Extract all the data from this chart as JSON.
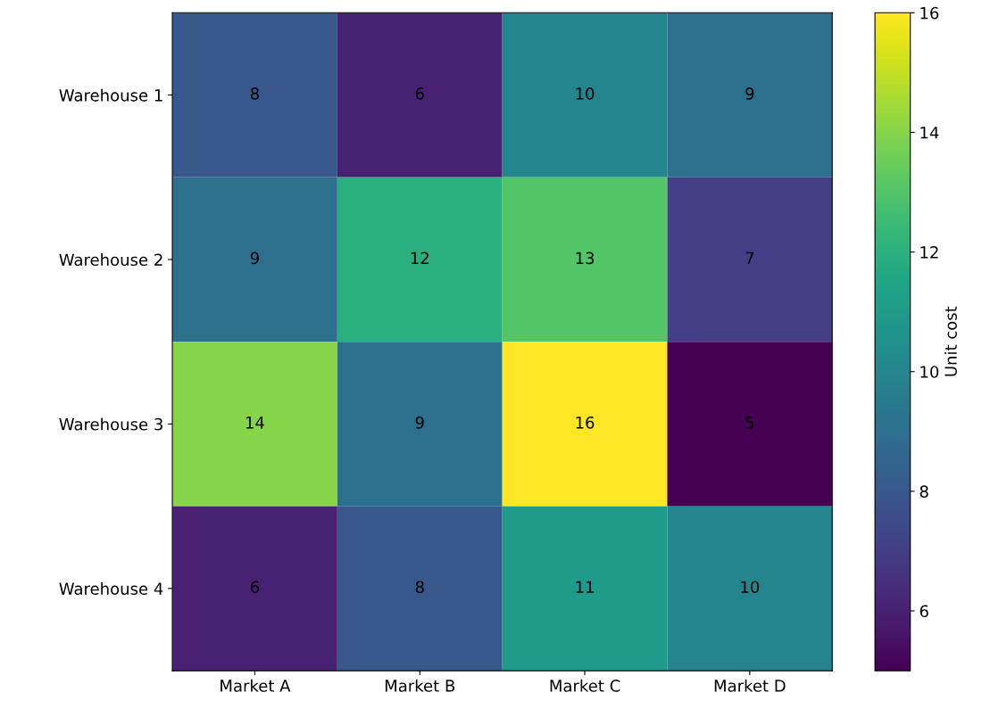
{
  "chart_data": {
    "type": "heatmap",
    "categories": [
      "Market A",
      "Market B",
      "Market C",
      "Market D"
    ],
    "y_categories": [
      "Warehouse 1",
      "Warehouse 2",
      "Warehouse 3",
      "Warehouse 4"
    ],
    "cells": [
      [
        8,
        6,
        10,
        9
      ],
      [
        9,
        12,
        13,
        7
      ],
      [
        14,
        9,
        16,
        5
      ],
      [
        6,
        8,
        11,
        10
      ]
    ],
    "clim": [
      5,
      16
    ],
    "cticks": [
      6,
      8,
      10,
      12,
      14,
      16
    ],
    "clabel": "Unit cost",
    "data_labels": true
  }
}
